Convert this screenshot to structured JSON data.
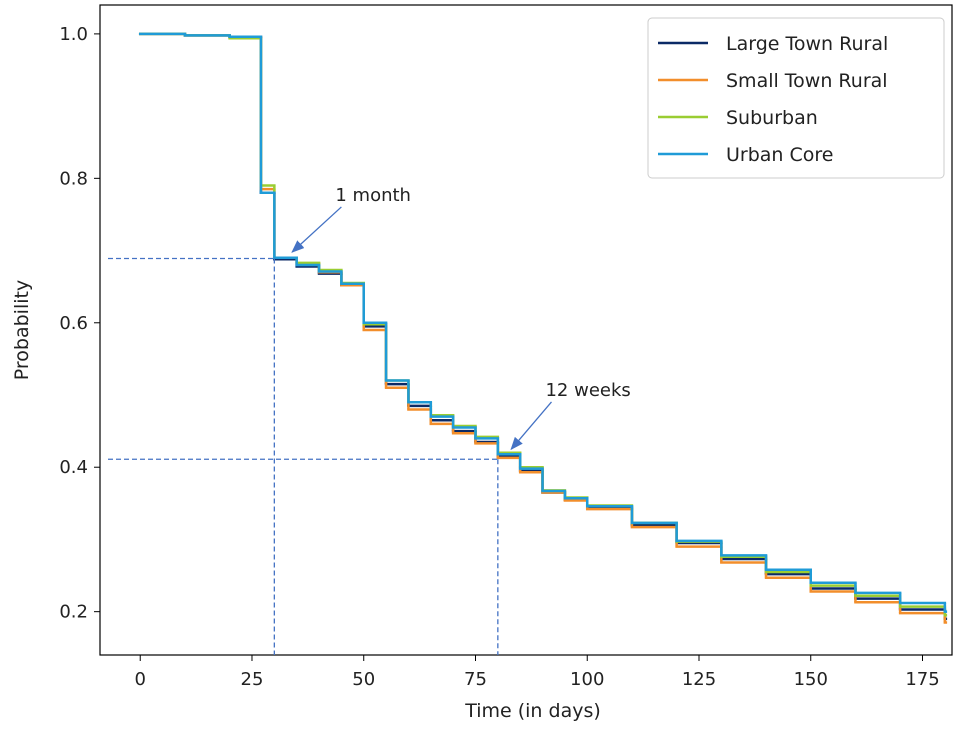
{
  "chart_data": {
    "type": "step",
    "xlabel": "Time (in days)",
    "ylabel": "Probability",
    "xlim": [
      -9,
      181.6
    ],
    "ylim": [
      0.14,
      1.04
    ],
    "xticks": [
      0,
      25,
      50,
      75,
      100,
      125,
      150,
      175
    ],
    "yticks": [
      0.2,
      0.4,
      0.6,
      0.8,
      {
        "value": 1,
        "label": "1.0"
      }
    ],
    "legend": "upper right",
    "x": [
      0,
      10,
      20,
      27,
      30,
      35,
      40,
      45,
      50,
      55,
      60,
      65,
      70,
      75,
      80,
      85,
      90,
      95,
      100,
      110,
      120,
      130,
      140,
      150,
      160,
      170,
      180
    ],
    "series": [
      {
        "name": "Large Town Rural",
        "color": "#0b2a66",
        "values": [
          1.0,
          0.998,
          0.996,
          0.78,
          0.688,
          0.678,
          0.668,
          0.652,
          0.595,
          0.515,
          0.485,
          0.465,
          0.45,
          0.435,
          0.415,
          0.395,
          0.365,
          0.355,
          0.343,
          0.32,
          0.295,
          0.273,
          0.252,
          0.232,
          0.218,
          0.203,
          0.19
        ]
      },
      {
        "name": "Small Town Rural",
        "color": "#f28e2b",
        "values": [
          1.0,
          0.998,
          0.995,
          0.785,
          0.69,
          0.682,
          0.67,
          0.652,
          0.59,
          0.51,
          0.48,
          0.46,
          0.447,
          0.433,
          0.413,
          0.393,
          0.365,
          0.354,
          0.342,
          0.317,
          0.29,
          0.268,
          0.247,
          0.228,
          0.213,
          0.198,
          0.185
        ]
      },
      {
        "name": "Suburban",
        "color": "#9acd32",
        "values": [
          1.0,
          0.998,
          0.994,
          0.79,
          0.69,
          0.683,
          0.673,
          0.655,
          0.598,
          0.52,
          0.49,
          0.472,
          0.457,
          0.442,
          0.42,
          0.4,
          0.368,
          0.358,
          0.347,
          0.323,
          0.297,
          0.276,
          0.255,
          0.236,
          0.222,
          0.207,
          0.195
        ]
      },
      {
        "name": "Urban Core",
        "color": "#1f9bd7",
        "values": [
          1.0,
          0.998,
          0.996,
          0.78,
          0.69,
          0.68,
          0.671,
          0.654,
          0.6,
          0.52,
          0.49,
          0.47,
          0.455,
          0.44,
          0.418,
          0.398,
          0.367,
          0.357,
          0.346,
          0.323,
          0.298,
          0.278,
          0.258,
          0.24,
          0.226,
          0.212,
          0.2
        ]
      }
    ],
    "reference_lines": [
      {
        "x": 30,
        "y": 0.689
      },
      {
        "x": 80,
        "y": 0.411
      }
    ],
    "annotations": [
      {
        "text": "1 month",
        "x": 45,
        "y": 0.777,
        "arrow_x": 34,
        "arrow_y": 0.698
      },
      {
        "text": "12 weeks",
        "x": 92,
        "y": 0.507,
        "arrow_x": 83,
        "arrow_y": 0.425
      }
    ]
  }
}
